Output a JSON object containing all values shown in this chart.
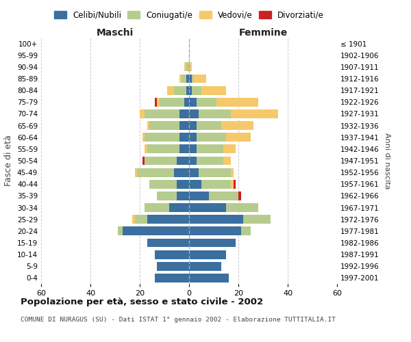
{
  "age_groups": [
    "0-4",
    "5-9",
    "10-14",
    "15-19",
    "20-24",
    "25-29",
    "30-34",
    "35-39",
    "40-44",
    "45-49",
    "50-54",
    "55-59",
    "60-64",
    "65-69",
    "70-74",
    "75-79",
    "80-84",
    "85-89",
    "90-94",
    "95-99",
    "100+"
  ],
  "birth_years": [
    "1997-2001",
    "1992-1996",
    "1987-1991",
    "1982-1986",
    "1977-1981",
    "1972-1976",
    "1967-1971",
    "1962-1966",
    "1957-1961",
    "1952-1956",
    "1947-1951",
    "1942-1946",
    "1937-1941",
    "1932-1936",
    "1927-1931",
    "1922-1926",
    "1917-1921",
    "1912-1916",
    "1907-1911",
    "1902-1906",
    "≤ 1901"
  ],
  "maschi": {
    "celibi": [
      14,
      13,
      14,
      17,
      27,
      17,
      8,
      5,
      5,
      6,
      5,
      4,
      4,
      4,
      4,
      2,
      1,
      1,
      0,
      0,
      0
    ],
    "coniugati": [
      0,
      0,
      0,
      0,
      2,
      5,
      10,
      8,
      11,
      15,
      13,
      13,
      14,
      12,
      14,
      10,
      5,
      2,
      1,
      0,
      0
    ],
    "vedovi": [
      0,
      0,
      0,
      0,
      0,
      1,
      0,
      0,
      0,
      1,
      0,
      1,
      1,
      1,
      2,
      1,
      3,
      1,
      1,
      0,
      0
    ],
    "divorziati": [
      0,
      0,
      0,
      0,
      0,
      0,
      0,
      0,
      0,
      0,
      1,
      0,
      0,
      0,
      0,
      1,
      0,
      0,
      0,
      0,
      0
    ]
  },
  "femmine": {
    "nubili": [
      16,
      13,
      15,
      19,
      21,
      22,
      15,
      8,
      5,
      4,
      3,
      3,
      3,
      3,
      4,
      3,
      1,
      1,
      0,
      0,
      0
    ],
    "coniugate": [
      0,
      0,
      0,
      0,
      4,
      11,
      13,
      12,
      12,
      13,
      11,
      11,
      12,
      10,
      13,
      8,
      4,
      1,
      0,
      0,
      0
    ],
    "vedove": [
      0,
      0,
      0,
      0,
      0,
      0,
      0,
      0,
      1,
      1,
      3,
      5,
      10,
      13,
      19,
      17,
      10,
      5,
      1,
      0,
      0
    ],
    "divorziate": [
      0,
      0,
      0,
      0,
      0,
      0,
      0,
      1,
      1,
      0,
      0,
      0,
      0,
      0,
      0,
      0,
      0,
      0,
      0,
      0,
      0
    ]
  },
  "colors": {
    "celibi": "#3a6fa0",
    "coniugati": "#b5cc8e",
    "vedovi": "#f5c96a",
    "divorziati": "#cc2222"
  },
  "title": "Popolazione per età, sesso e stato civile - 2002",
  "subtitle": "COMUNE DI NURAGUS (SU) - Dati ISTAT 1° gennaio 2002 - Elaborazione TUTTITALIA.IT",
  "xlabel_left": "Maschi",
  "xlabel_right": "Femmine",
  "ylabel_left": "Fasce di età",
  "ylabel_right": "Anni di nascita",
  "xlim": 60,
  "legend_labels": [
    "Celibi/Nubili",
    "Coniugati/e",
    "Vedovi/e",
    "Divorziati/e"
  ],
  "background_color": "#ffffff",
  "grid_color": "#cccccc"
}
